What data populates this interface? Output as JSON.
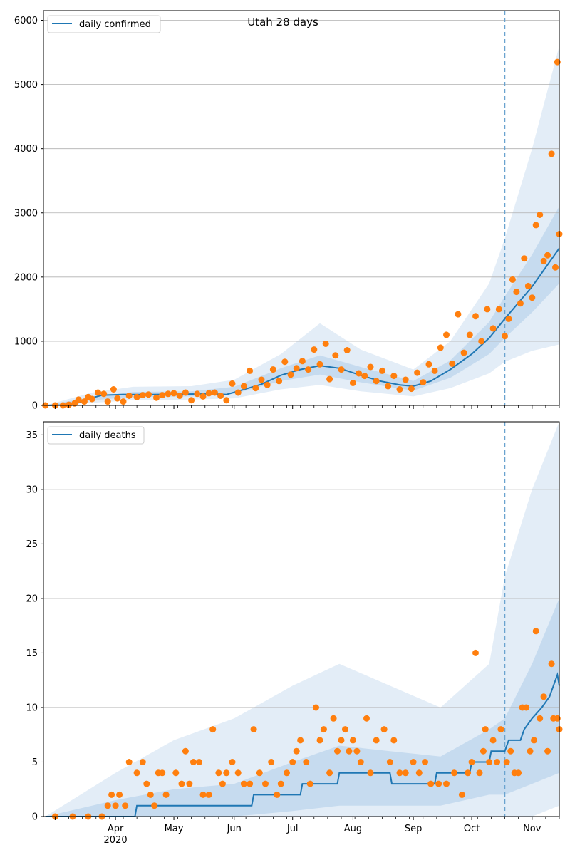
{
  "chart_data": [
    {
      "type": "line",
      "title": "Utah 28 days",
      "xlabel": "",
      "ylabel": "",
      "ylim": [
        0,
        6150
      ],
      "yticks": [
        0,
        1000,
        2000,
        3000,
        4000,
        5000,
        6000
      ],
      "grid": "horizontal",
      "legend_position": "top-left",
      "series_name": "daily confirmed",
      "forecast_start": "2020-10-18",
      "cutoff_line": "dashed vertical",
      "line_points": [
        [
          "2020-02-25",
          0
        ],
        [
          "2020-03-05",
          5
        ],
        [
          "2020-03-12",
          30
        ],
        [
          "2020-03-18",
          100
        ],
        [
          "2020-03-25",
          160
        ],
        [
          "2020-04-05",
          170
        ],
        [
          "2020-04-20",
          170
        ],
        [
          "2020-05-05",
          175
        ],
        [
          "2020-05-20",
          180
        ],
        [
          "2020-05-28",
          170
        ],
        [
          "2020-06-05",
          240
        ],
        [
          "2020-06-15",
          330
        ],
        [
          "2020-06-25",
          470
        ],
        [
          "2020-07-05",
          560
        ],
        [
          "2020-07-15",
          620
        ],
        [
          "2020-07-25",
          580
        ],
        [
          "2020-08-05",
          470
        ],
        [
          "2020-08-15",
          380
        ],
        [
          "2020-08-25",
          320
        ],
        [
          "2020-09-01",
          300
        ],
        [
          "2020-09-10",
          380
        ],
        [
          "2020-09-20",
          560
        ],
        [
          "2020-10-01",
          800
        ],
        [
          "2020-10-10",
          1050
        ],
        [
          "2020-10-18",
          1350
        ],
        [
          "2020-10-25",
          1600
        ],
        [
          "2020-11-01",
          1850
        ],
        [
          "2020-11-08",
          2150
        ],
        [
          "2020-11-15",
          2450
        ]
      ],
      "observed_points": [
        [
          "2020-02-25",
          0
        ],
        [
          "2020-03-01",
          0
        ],
        [
          "2020-03-05",
          0
        ],
        [
          "2020-03-08",
          10
        ],
        [
          "2020-03-11",
          30
        ],
        [
          "2020-03-13",
          90
        ],
        [
          "2020-03-16",
          60
        ],
        [
          "2020-03-18",
          130
        ],
        [
          "2020-03-20",
          100
        ],
        [
          "2020-03-23",
          200
        ],
        [
          "2020-03-26",
          180
        ],
        [
          "2020-03-28",
          60
        ],
        [
          "2020-03-31",
          250
        ],
        [
          "2020-04-02",
          110
        ],
        [
          "2020-04-05",
          60
        ],
        [
          "2020-04-08",
          150
        ],
        [
          "2020-04-12",
          130
        ],
        [
          "2020-04-15",
          160
        ],
        [
          "2020-04-18",
          170
        ],
        [
          "2020-04-22",
          120
        ],
        [
          "2020-04-25",
          160
        ],
        [
          "2020-04-28",
          180
        ],
        [
          "2020-05-01",
          190
        ],
        [
          "2020-05-04",
          150
        ],
        [
          "2020-05-07",
          200
        ],
        [
          "2020-05-10",
          80
        ],
        [
          "2020-05-13",
          180
        ],
        [
          "2020-05-16",
          140
        ],
        [
          "2020-05-19",
          190
        ],
        [
          "2020-05-22",
          200
        ],
        [
          "2020-05-25",
          150
        ],
        [
          "2020-05-28",
          80
        ],
        [
          "2020-05-31",
          340
        ],
        [
          "2020-06-03",
          200
        ],
        [
          "2020-06-06",
          300
        ],
        [
          "2020-06-09",
          540
        ],
        [
          "2020-06-12",
          270
        ],
        [
          "2020-06-15",
          400
        ],
        [
          "2020-06-18",
          320
        ],
        [
          "2020-06-21",
          560
        ],
        [
          "2020-06-24",
          380
        ],
        [
          "2020-06-27",
          680
        ],
        [
          "2020-06-30",
          480
        ],
        [
          "2020-07-03",
          580
        ],
        [
          "2020-07-06",
          690
        ],
        [
          "2020-07-09",
          560
        ],
        [
          "2020-07-12",
          870
        ],
        [
          "2020-07-15",
          640
        ],
        [
          "2020-07-18",
          960
        ],
        [
          "2020-07-20",
          410
        ],
        [
          "2020-07-23",
          780
        ],
        [
          "2020-07-26",
          560
        ],
        [
          "2020-07-29",
          860
        ],
        [
          "2020-08-01",
          350
        ],
        [
          "2020-08-04",
          500
        ],
        [
          "2020-08-07",
          460
        ],
        [
          "2020-08-10",
          600
        ],
        [
          "2020-08-13",
          380
        ],
        [
          "2020-08-16",
          540
        ],
        [
          "2020-08-19",
          300
        ],
        [
          "2020-08-22",
          460
        ],
        [
          "2020-08-25",
          250
        ],
        [
          "2020-08-28",
          400
        ],
        [
          "2020-08-31",
          260
        ],
        [
          "2020-09-03",
          510
        ],
        [
          "2020-09-06",
          360
        ],
        [
          "2020-09-09",
          640
        ],
        [
          "2020-09-12",
          540
        ],
        [
          "2020-09-15",
          900
        ],
        [
          "2020-09-18",
          1100
        ],
        [
          "2020-09-21",
          650
        ],
        [
          "2020-09-24",
          1420
        ],
        [
          "2020-09-27",
          820
        ],
        [
          "2020-09-30",
          1100
        ],
        [
          "2020-10-03",
          1390
        ],
        [
          "2020-10-06",
          1000
        ],
        [
          "2020-10-09",
          1500
        ],
        [
          "2020-10-12",
          1200
        ],
        [
          "2020-10-15",
          1500
        ],
        [
          "2020-10-18",
          1080
        ],
        [
          "2020-10-20",
          1350
        ],
        [
          "2020-10-22",
          1960
        ],
        [
          "2020-10-24",
          1770
        ],
        [
          "2020-10-26",
          1590
        ],
        [
          "2020-10-28",
          2290
        ],
        [
          "2020-10-30",
          1860
        ],
        [
          "2020-11-01",
          1680
        ],
        [
          "2020-11-03",
          2810
        ],
        [
          "2020-11-05",
          2970
        ],
        [
          "2020-11-07",
          2250
        ],
        [
          "2020-11-09",
          2340
        ],
        [
          "2020-11-11",
          3920
        ],
        [
          "2020-11-13",
          2150
        ],
        [
          "2020-11-14",
          5350
        ],
        [
          "2020-11-15",
          2670
        ]
      ],
      "band_inner": [
        [
          "2020-02-25",
          0,
          0
        ],
        [
          "2020-03-20",
          80,
          130
        ],
        [
          "2020-04-10",
          130,
          210
        ],
        [
          "2020-05-10",
          140,
          220
        ],
        [
          "2020-06-01",
          180,
          290
        ],
        [
          "2020-06-25",
          380,
          580
        ],
        [
          "2020-07-15",
          480,
          780
        ],
        [
          "2020-08-05",
          360,
          600
        ],
        [
          "2020-09-01",
          230,
          380
        ],
        [
          "2020-09-20",
          430,
          700
        ],
        [
          "2020-10-10",
          800,
          1300
        ],
        [
          "2020-10-18",
          1050,
          1700
        ],
        [
          "2020-11-01",
          1450,
          2350
        ],
        [
          "2020-11-15",
          1900,
          3100
        ]
      ],
      "band_outer": [
        [
          "2020-02-25",
          0,
          0
        ],
        [
          "2020-03-20",
          40,
          200
        ],
        [
          "2020-04-10",
          80,
          290
        ],
        [
          "2020-05-10",
          90,
          300
        ],
        [
          "2020-06-01",
          110,
          400
        ],
        [
          "2020-06-25",
          250,
          800
        ],
        [
          "2020-07-15",
          320,
          1280
        ],
        [
          "2020-08-05",
          220,
          870
        ],
        [
          "2020-09-01",
          140,
          560
        ],
        [
          "2020-09-20",
          270,
          1000
        ],
        [
          "2020-10-10",
          500,
          1900
        ],
        [
          "2020-10-18",
          680,
          2600
        ],
        [
          "2020-11-01",
          850,
          4000
        ],
        [
          "2020-11-15",
          950,
          5600
        ]
      ]
    },
    {
      "type": "line",
      "title": "",
      "xlabel": "",
      "ylabel": "",
      "ylim": [
        0,
        36.2
      ],
      "yticks": [
        0,
        5,
        10,
        15,
        20,
        25,
        30,
        35
      ],
      "grid": "horizontal",
      "legend_position": "top-left",
      "series_name": "daily deaths",
      "forecast_start": "2020-10-18",
      "x_ticks": [
        "Apr",
        "May",
        "Jun",
        "Jul",
        "Aug",
        "Sep",
        "Oct",
        "Nov"
      ],
      "x_year_label": "2020",
      "line_points": [
        [
          "2020-02-25",
          0
        ],
        [
          "2020-04-11",
          0
        ],
        [
          "2020-04-12",
          1
        ],
        [
          "2020-06-10",
          1
        ],
        [
          "2020-06-11",
          2
        ],
        [
          "2020-07-05",
          2
        ],
        [
          "2020-07-06",
          3
        ],
        [
          "2020-07-24",
          3
        ],
        [
          "2020-07-25",
          4
        ],
        [
          "2020-08-20",
          4
        ],
        [
          "2020-08-21",
          3
        ],
        [
          "2020-09-12",
          3
        ],
        [
          "2020-09-13",
          4
        ],
        [
          "2020-09-30",
          4
        ],
        [
          "2020-10-01",
          5
        ],
        [
          "2020-10-10",
          5
        ],
        [
          "2020-10-11",
          6
        ],
        [
          "2020-10-18",
          6
        ],
        [
          "2020-10-20",
          7
        ],
        [
          "2020-10-26",
          7
        ],
        [
          "2020-10-28",
          8
        ],
        [
          "2020-11-01",
          9
        ],
        [
          "2020-11-06",
          10
        ],
        [
          "2020-11-10",
          11
        ],
        [
          "2020-11-14",
          13
        ],
        [
          "2020-11-15",
          12
        ]
      ],
      "observed_points": [
        [
          "2020-03-01",
          0
        ],
        [
          "2020-03-10",
          0
        ],
        [
          "2020-03-18",
          0
        ],
        [
          "2020-03-25",
          0
        ],
        [
          "2020-03-28",
          1
        ],
        [
          "2020-03-30",
          2
        ],
        [
          "2020-04-01",
          1
        ],
        [
          "2020-04-03",
          2
        ],
        [
          "2020-04-06",
          1
        ],
        [
          "2020-04-08",
          5
        ],
        [
          "2020-04-12",
          4
        ],
        [
          "2020-04-15",
          5
        ],
        [
          "2020-04-17",
          3
        ],
        [
          "2020-04-19",
          2
        ],
        [
          "2020-04-21",
          1
        ],
        [
          "2020-04-23",
          4
        ],
        [
          "2020-04-25",
          4
        ],
        [
          "2020-04-27",
          2
        ],
        [
          "2020-05-02",
          4
        ],
        [
          "2020-05-05",
          3
        ],
        [
          "2020-05-07",
          6
        ],
        [
          "2020-05-09",
          3
        ],
        [
          "2020-05-11",
          5
        ],
        [
          "2020-05-14",
          5
        ],
        [
          "2020-05-16",
          2
        ],
        [
          "2020-05-19",
          2
        ],
        [
          "2020-05-21",
          8
        ],
        [
          "2020-05-24",
          4
        ],
        [
          "2020-05-26",
          3
        ],
        [
          "2020-05-28",
          4
        ],
        [
          "2020-05-31",
          5
        ],
        [
          "2020-06-03",
          4
        ],
        [
          "2020-06-06",
          3
        ],
        [
          "2020-06-09",
          3
        ],
        [
          "2020-06-11",
          8
        ],
        [
          "2020-06-14",
          4
        ],
        [
          "2020-06-17",
          3
        ],
        [
          "2020-06-20",
          5
        ],
        [
          "2020-06-23",
          2
        ],
        [
          "2020-06-25",
          3
        ],
        [
          "2020-06-28",
          4
        ],
        [
          "2020-07-01",
          5
        ],
        [
          "2020-07-03",
          6
        ],
        [
          "2020-07-05",
          7
        ],
        [
          "2020-07-08",
          5
        ],
        [
          "2020-07-10",
          3
        ],
        [
          "2020-07-13",
          10
        ],
        [
          "2020-07-15",
          7
        ],
        [
          "2020-07-17",
          8
        ],
        [
          "2020-07-20",
          4
        ],
        [
          "2020-07-22",
          9
        ],
        [
          "2020-07-24",
          6
        ],
        [
          "2020-07-26",
          7
        ],
        [
          "2020-07-28",
          8
        ],
        [
          "2020-07-30",
          6
        ],
        [
          "2020-08-01",
          7
        ],
        [
          "2020-08-03",
          6
        ],
        [
          "2020-08-05",
          5
        ],
        [
          "2020-08-08",
          9
        ],
        [
          "2020-08-10",
          4
        ],
        [
          "2020-08-13",
          7
        ],
        [
          "2020-08-17",
          8
        ],
        [
          "2020-08-20",
          5
        ],
        [
          "2020-08-22",
          7
        ],
        [
          "2020-08-25",
          4
        ],
        [
          "2020-08-28",
          4
        ],
        [
          "2020-09-01",
          5
        ],
        [
          "2020-09-04",
          4
        ],
        [
          "2020-09-07",
          5
        ],
        [
          "2020-09-10",
          3
        ],
        [
          "2020-09-14",
          3
        ],
        [
          "2020-09-18",
          3
        ],
        [
          "2020-09-22",
          4
        ],
        [
          "2020-09-26",
          2
        ],
        [
          "2020-09-29",
          4
        ],
        [
          "2020-10-01",
          5
        ],
        [
          "2020-10-03",
          15
        ],
        [
          "2020-10-05",
          4
        ],
        [
          "2020-10-07",
          6
        ],
        [
          "2020-10-08",
          8
        ],
        [
          "2020-10-10",
          5
        ],
        [
          "2020-10-12",
          7
        ],
        [
          "2020-10-14",
          5
        ],
        [
          "2020-10-16",
          8
        ],
        [
          "2020-10-19",
          5
        ],
        [
          "2020-10-21",
          6
        ],
        [
          "2020-10-23",
          4
        ],
        [
          "2020-10-25",
          4
        ],
        [
          "2020-10-27",
          10
        ],
        [
          "2020-10-29",
          10
        ],
        [
          "2020-10-31",
          6
        ],
        [
          "2020-11-02",
          7
        ],
        [
          "2020-11-03",
          17
        ],
        [
          "2020-11-05",
          9
        ],
        [
          "2020-11-07",
          11
        ],
        [
          "2020-11-09",
          6
        ],
        [
          "2020-11-11",
          14
        ],
        [
          "2020-11-12",
          9
        ],
        [
          "2020-11-14",
          9
        ],
        [
          "2020-11-15",
          8
        ]
      ],
      "band_inner": [
        [
          "2020-02-25",
          0,
          0
        ],
        [
          "2020-04-01",
          0,
          1.5
        ],
        [
          "2020-05-01",
          0,
          2.5
        ],
        [
          "2020-06-01",
          0,
          3
        ],
        [
          "2020-07-01",
          0.5,
          5
        ],
        [
          "2020-07-25",
          1,
          6.5
        ],
        [
          "2020-08-20",
          1,
          6
        ],
        [
          "2020-09-15",
          1,
          5.5
        ],
        [
          "2020-10-10",
          2,
          8
        ],
        [
          "2020-10-18",
          2,
          9
        ],
        [
          "2020-11-01",
          3,
          14
        ],
        [
          "2020-11-15",
          4,
          20
        ]
      ],
      "band_outer": [
        [
          "2020-02-25",
          0,
          0
        ],
        [
          "2020-04-01",
          0,
          4
        ],
        [
          "2020-05-01",
          0,
          7
        ],
        [
          "2020-06-01",
          0,
          9
        ],
        [
          "2020-07-01",
          0,
          12
        ],
        [
          "2020-07-25",
          0,
          14
        ],
        [
          "2020-08-20",
          0,
          12
        ],
        [
          "2020-09-15",
          0,
          10
        ],
        [
          "2020-10-10",
          0,
          14
        ],
        [
          "2020-10-18",
          0,
          22
        ],
        [
          "2020-11-01",
          0,
          30
        ],
        [
          "2020-11-15",
          1,
          36.2
        ]
      ]
    }
  ],
  "colors": {
    "line": "#1f77b4",
    "points": "#ff7f0e",
    "band_inner": "#c6dbef",
    "band_outer": "#e3edf7",
    "grid": "#b0b0b0",
    "cutoff": "#6aa3cf"
  }
}
